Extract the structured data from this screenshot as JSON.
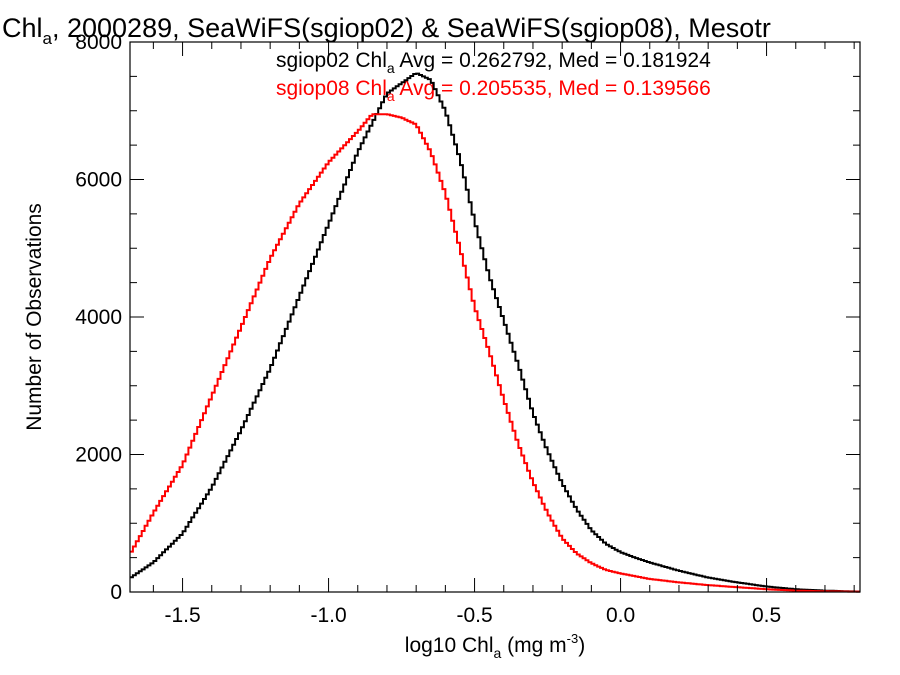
{
  "chart_data": {
    "type": "line",
    "title_main": "Chl",
    "title_sub": "a",
    "title_rest": ", 2000289, SeaWiFS(sgiop02) & SeaWiFS(sgiop08), Mesotr",
    "xlabel_pre": "log10 Chl",
    "xlabel_sub": "a",
    "xlabel_post": " (mg m",
    "xlabel_sup": "-3",
    "xlabel_close": ")",
    "ylabel": "Number of Observations",
    "xlim": [
      -1.68,
      0.82
    ],
    "ylim": [
      0,
      8000
    ],
    "xticks": [
      -1.5,
      -1.0,
      -0.5,
      0.0,
      0.5
    ],
    "xtick_labels": [
      "-1.5",
      "-1.0",
      "-0.5",
      "0.0",
      "0.5"
    ],
    "yticks": [
      0,
      2000,
      4000,
      6000,
      8000
    ],
    "ytick_labels": [
      "0",
      "2000",
      "4000",
      "6000",
      "8000"
    ],
    "grid": false,
    "legend": [
      {
        "pre": "sgiop02 Chl",
        "sub": "a",
        "post": " Avg = 0.262792, Med = 0.181924",
        "color": "#000000"
      },
      {
        "pre": "sgiop08 Chl",
        "sub": "a",
        "post": " Avg = 0.205535, Med = 0.139566",
        "color": "#ff0000"
      }
    ],
    "series": [
      {
        "color": "#000000",
        "x": [
          -1.68,
          -1.6,
          -1.5,
          -1.4,
          -1.3,
          -1.2,
          -1.1,
          -1.0,
          -0.9,
          -0.8,
          -0.75,
          -0.7,
          -0.65,
          -0.6,
          -0.55,
          -0.5,
          -0.45,
          -0.4,
          -0.35,
          -0.3,
          -0.25,
          -0.2,
          -0.15,
          -0.1,
          -0.05,
          0.0,
          0.05,
          0.1,
          0.15,
          0.2,
          0.3,
          0.4,
          0.5,
          0.6,
          0.7,
          0.82
        ],
        "y": [
          200,
          430,
          850,
          1520,
          2350,
          3250,
          4300,
          5350,
          6400,
          7250,
          7400,
          7550,
          7450,
          7000,
          6300,
          5400,
          4600,
          3950,
          3300,
          2600,
          2050,
          1580,
          1200,
          900,
          700,
          580,
          500,
          430,
          370,
          310,
          210,
          140,
          80,
          40,
          20,
          5
        ]
      },
      {
        "color": "#ff0000",
        "x": [
          -1.68,
          -1.6,
          -1.5,
          -1.4,
          -1.3,
          -1.2,
          -1.1,
          -1.0,
          -0.9,
          -0.85,
          -0.8,
          -0.75,
          -0.7,
          -0.65,
          -0.6,
          -0.55,
          -0.5,
          -0.45,
          -0.4,
          -0.35,
          -0.3,
          -0.25,
          -0.2,
          -0.15,
          -0.1,
          -0.05,
          0.0,
          0.05,
          0.1,
          0.2,
          0.3,
          0.4,
          0.5,
          0.6,
          0.7,
          0.82
        ],
        "y": [
          550,
          1150,
          1850,
          2850,
          3850,
          4850,
          5650,
          6250,
          6700,
          6950,
          6950,
          6900,
          6800,
          6400,
          5800,
          5000,
          4150,
          3500,
          2800,
          2150,
          1600,
          1150,
          780,
          560,
          420,
          320,
          270,
          230,
          190,
          140,
          100,
          70,
          40,
          20,
          10,
          5
        ]
      }
    ]
  }
}
